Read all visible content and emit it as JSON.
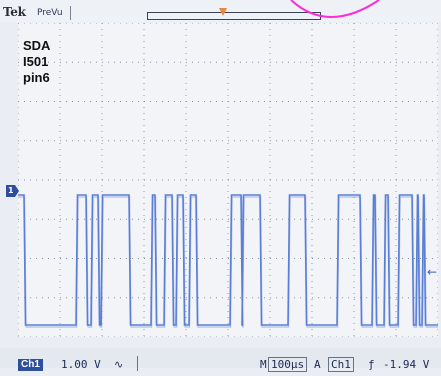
{
  "header": {
    "brand": "Tek",
    "mode": "PreVu"
  },
  "trace_label": {
    "lines": [
      "SDA",
      "I501",
      "pin6"
    ]
  },
  "markers": {
    "ch1": "1",
    "tpos": "T"
  },
  "status": {
    "channel": "Ch1",
    "volts_per_div": "1.00 V",
    "coupling_symbol": "∿",
    "m_label": "M",
    "timebase": "100µs",
    "a_label": "A",
    "trigger_source": "Ch1",
    "trigger_edge_symbol": "ƒ",
    "trigger_level": "-1.94 V"
  },
  "colors": {
    "trace": "#5b7fd6",
    "grid": "#8a93a8",
    "badge": "#2d4f9d",
    "tpos": "#e48a3a",
    "annotation": "#ff2bd6"
  },
  "waveform": {
    "high_level": 0.0,
    "low_level": -4.0,
    "edges_time": [
      6,
      58,
      68,
      73,
      80,
      83,
      111,
      133,
      137,
      146,
      154,
      158,
      165,
      171,
      178,
      212,
      223,
      224,
      242,
      270,
      287,
      319,
      342,
      354,
      357,
      366,
      370,
      380,
      394,
      398,
      400,
      404,
      406
    ],
    "high_segments_first": true
  }
}
